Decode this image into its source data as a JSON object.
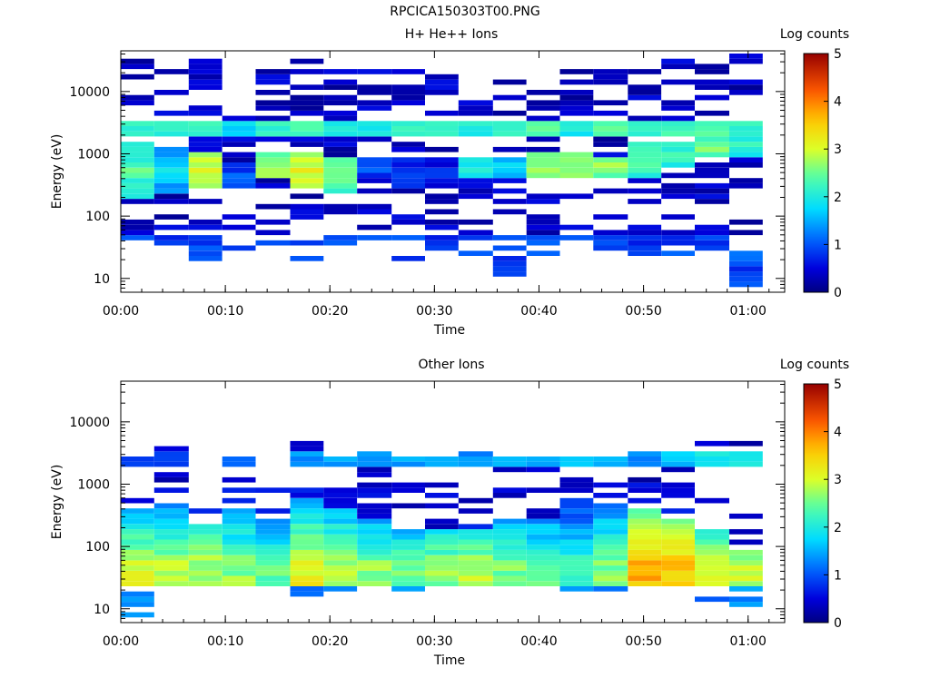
{
  "figure_title": "RPCICA150303T00.PNG",
  "chart_data": [
    {
      "type": "heatmap",
      "title": "H+ He++ Ions",
      "xlabel": "Time",
      "ylabel": "Energy (eV)",
      "yscale": "log",
      "ylim": [
        6,
        45000
      ],
      "xlim_minutes": [
        0,
        63.5
      ],
      "x_ticks": [
        "00:00",
        "00:10",
        "00:20",
        "00:30",
        "00:40",
        "00:50",
        "01:00"
      ],
      "y_ticks": [
        "10",
        "100",
        "1000",
        "10000"
      ],
      "colorbar": {
        "label": "Log counts",
        "range": [
          0,
          5
        ],
        "ticks": [
          "0",
          "1",
          "2",
          "3",
          "4",
          "5"
        ],
        "colormap": "rainbow"
      },
      "time_bins_minutes": [
        0,
        3.2,
        6.5,
        9.7,
        12.9,
        16.2,
        19.4,
        22.6,
        25.9,
        29.1,
        32.3,
        35.6,
        38.8,
        42.0,
        45.2,
        48.5,
        51.7,
        54.9,
        58.2,
        61.4
      ],
      "column_profiles": [
        {
          "low": 35,
          "mid_lo": 200,
          "mid_hi": 1500,
          "mid_level": 2.2,
          "band": 2.0,
          "hi_cut": 40000
        },
        {
          "low": 22,
          "mid_lo": 250,
          "mid_hi": 1200,
          "mid_level": 1.6,
          "band": 2.0,
          "hi_cut": 30000
        },
        {
          "low": 18,
          "mid_lo": 300,
          "mid_hi": 1000,
          "mid_level": 2.8,
          "band": 2.1,
          "hi_cut": 40000
        },
        {
          "low": 28,
          "mid_lo": 300,
          "mid_hi": 700,
          "mid_level": 0.8,
          "band": 1.6,
          "hi_cut": 30000
        },
        {
          "low": 30,
          "mid_lo": 400,
          "mid_hi": 1000,
          "mid_level": 2.6,
          "band": 2.0,
          "hi_cut": 35000
        },
        {
          "low": 18,
          "mid_lo": 300,
          "mid_hi": 1000,
          "mid_level": 2.9,
          "band": 2.1,
          "hi_cut": 35000
        },
        {
          "low": 28,
          "mid_lo": 250,
          "mid_hi": 900,
          "mid_level": 2.4,
          "band": 1.9,
          "hi_cut": 30000
        },
        {
          "low": 30,
          "mid_lo": 400,
          "mid_hi": 900,
          "mid_level": 0.8,
          "band": 1.8,
          "hi_cut": 35000
        },
        {
          "low": 18,
          "mid_lo": 300,
          "mid_hi": 800,
          "mid_level": 0.7,
          "band": 2.0,
          "hi_cut": 30000
        },
        {
          "low": 18,
          "mid_lo": 300,
          "mid_hi": 700,
          "mid_level": 0.6,
          "band": 2.0,
          "hi_cut": 30000
        },
        {
          "low": 25,
          "mid_lo": 400,
          "mid_hi": 800,
          "mid_level": 1.8,
          "band": 1.9,
          "hi_cut": 30000
        },
        {
          "low": 11,
          "mid_lo": 400,
          "mid_hi": 900,
          "mid_level": 1.5,
          "band": 2.0,
          "hi_cut": 25000
        },
        {
          "low": 25,
          "mid_lo": 400,
          "mid_hi": 1000,
          "mid_level": 2.5,
          "band": 2.3,
          "hi_cut": 35000
        },
        {
          "low": 28,
          "mid_lo": 400,
          "mid_hi": 1000,
          "mid_level": 2.6,
          "band": 1.8,
          "hi_cut": 30000
        },
        {
          "low": 22,
          "mid_lo": 400,
          "mid_hi": 900,
          "mid_level": 2.5,
          "band": 2.2,
          "hi_cut": 30000
        },
        {
          "low": 18,
          "mid_lo": 400,
          "mid_hi": 1500,
          "mid_level": 2.2,
          "band": 2.0,
          "hi_cut": 30000
        },
        {
          "low": 25,
          "mid_lo": 600,
          "mid_hi": 1500,
          "mid_level": 2.0,
          "band": 2.1,
          "hi_cut": 35000
        },
        {
          "low": 25,
          "mid_lo": 800,
          "mid_hi": 2000,
          "mid_level": 2.4,
          "band": 2.2,
          "hi_cut": 35000
        },
        {
          "low": 7,
          "mid_lo": 800,
          "mid_hi": 2000,
          "mid_level": 2.0,
          "band": 2.0,
          "hi_cut": 40000
        },
        {
          "low": 25,
          "mid_lo": 1000,
          "mid_hi": 2500,
          "mid_level": 1.8,
          "band": 2.2,
          "hi_cut": 35000
        }
      ]
    },
    {
      "type": "heatmap",
      "title": "Other Ions",
      "xlabel": "Time",
      "ylabel": "Energy (eV)",
      "yscale": "log",
      "ylim": [
        6,
        45000
      ],
      "xlim_minutes": [
        0,
        63.5
      ],
      "x_ticks": [
        "00:00",
        "00:10",
        "00:20",
        "00:30",
        "00:40",
        "00:50",
        "01:00"
      ],
      "y_ticks": [
        "10",
        "100",
        "1000",
        "10000"
      ],
      "colorbar": {
        "label": "Log counts",
        "range": [
          0,
          5
        ],
        "ticks": [
          "0",
          "1",
          "2",
          "3",
          "4",
          "5"
        ],
        "colormap": "rainbow"
      },
      "time_bins_minutes": [
        0,
        3.2,
        6.5,
        9.7,
        12.9,
        16.2,
        19.4,
        22.6,
        25.9,
        29.1,
        32.3,
        35.6,
        38.8,
        42.0,
        45.2,
        48.5,
        51.7,
        54.9,
        58.2,
        61.4
      ],
      "column_profiles": [
        {
          "low": 8,
          "core_hi": 400,
          "core_level": 2.7,
          "band": 0.8,
          "hi_cut": 2600
        },
        {
          "low": 22,
          "core_hi": 500,
          "core_level": 2.6,
          "band": 0.8,
          "hi_cut": 4500
        },
        {
          "low": 22,
          "core_hi": 250,
          "core_level": 2.6,
          "band": 1.2,
          "hi_cut": 900
        },
        {
          "low": 22,
          "core_hi": 400,
          "core_level": 2.4,
          "band": 1.0,
          "hi_cut": 3000
        },
        {
          "low": 18,
          "core_hi": 300,
          "core_level": 2.2,
          "band": 1.1,
          "hi_cut": 900
        },
        {
          "low": 8,
          "core_hi": 600,
          "core_level": 2.9,
          "band": 1.2,
          "hi_cut": 4500
        },
        {
          "low": 18,
          "core_hi": 400,
          "core_level": 2.6,
          "band": 1.3,
          "hi_cut": 3000
        },
        {
          "low": 22,
          "core_hi": 300,
          "core_level": 2.4,
          "band": 1.3,
          "hi_cut": 4500
        },
        {
          "low": 18,
          "core_hi": 200,
          "core_level": 2.2,
          "band": 1.3,
          "hi_cut": 3000
        },
        {
          "low": 22,
          "core_hi": 200,
          "core_level": 2.4,
          "band": 1.4,
          "hi_cut": 2600
        },
        {
          "low": 22,
          "core_hi": 180,
          "core_level": 2.6,
          "band": 1.2,
          "hi_cut": 4000
        },
        {
          "low": 22,
          "core_hi": 300,
          "core_level": 2.3,
          "band": 1.3,
          "hi_cut": 2600
        },
        {
          "low": 18,
          "core_hi": 300,
          "core_level": 2.2,
          "band": 1.4,
          "hi_cut": 3000
        },
        {
          "low": 18,
          "core_hi": 600,
          "core_level": 2.0,
          "band": 1.5,
          "hi_cut": 3000
        },
        {
          "low": 18,
          "core_hi": 500,
          "core_level": 2.4,
          "band": 1.5,
          "hi_cut": 3000
        },
        {
          "low": 12,
          "core_hi": 400,
          "core_level": 3.4,
          "band": 1.2,
          "hi_cut": 3500
        },
        {
          "low": 12,
          "core_hi": 300,
          "core_level": 3.3,
          "band": 1.5,
          "hi_cut": 3500
        },
        {
          "low": 8,
          "core_hi": 200,
          "core_level": 2.7,
          "band": 1.8,
          "hi_cut": 5000
        },
        {
          "low": 8,
          "core_hi": 90,
          "core_level": 2.6,
          "band": 1.8,
          "hi_cut": 6000
        },
        {
          "low": 8,
          "core_hi": 90,
          "core_level": 2.6,
          "band": 1.8,
          "hi_cut": 5500
        }
      ]
    }
  ]
}
